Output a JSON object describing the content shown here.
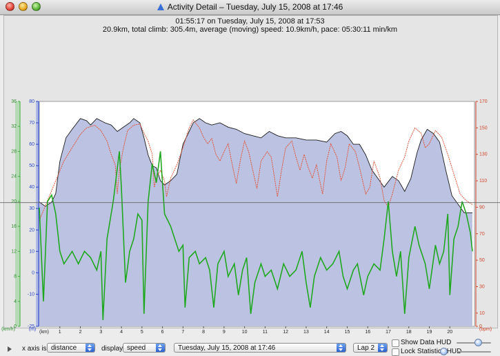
{
  "window": {
    "title": "Activity Detail – Tuesday, July 15, 2008 at 17:46"
  },
  "summary": {
    "line1": "01:55:17 on Tuesday, July 15, 2008 at 17:53",
    "line2": "20.9km, total climb: 305.4m, average (moving) speed: 10.9km/h, pace: 05:30:11 min/km"
  },
  "chart_data": {
    "type": "line",
    "x_unit": "(km)",
    "x_ticks": [
      "1",
      "2",
      "3",
      "4",
      "5",
      "6",
      "7",
      "8",
      "9",
      "10",
      "11",
      "12",
      "13",
      "14",
      "15",
      "16",
      "17",
      "18",
      "19",
      "20"
    ],
    "xlim": [
      0,
      21.2
    ],
    "axes": {
      "speed": {
        "unit": "(km/h)",
        "ticks": [
          "0",
          "4",
          "8",
          "12",
          "16",
          "20",
          "24",
          "28",
          "32",
          "36"
        ],
        "ylim": [
          0,
          36
        ],
        "color": "#3cad3c"
      },
      "altitude": {
        "unit": "(m)",
        "ticks": [
          "-25",
          "-10",
          "0",
          "10",
          "20",
          "30",
          "40",
          "50",
          "60",
          "70",
          "80"
        ],
        "ylim": [
          -25,
          80
        ],
        "color": "#2a44c8"
      },
      "heartrate": {
        "unit": "(bpm)",
        "ticks": [
          "0",
          "10",
          "30",
          "50",
          "70",
          "90",
          "110",
          "130",
          "150",
          "170"
        ],
        "ylim": [
          0,
          170
        ],
        "color": "#d0452a"
      }
    },
    "series": [
      {
        "name": "altitude",
        "axis": "altitude",
        "style": "filled",
        "points": [
          [
            0,
            33
          ],
          [
            0.3,
            31
          ],
          [
            0.6,
            33
          ],
          [
            0.8,
            37
          ],
          [
            1,
            52
          ],
          [
            1.3,
            63
          ],
          [
            1.6,
            67
          ],
          [
            2,
            72
          ],
          [
            2.3,
            71
          ],
          [
            2.5,
            69
          ],
          [
            2.8,
            72
          ],
          [
            3.2,
            70
          ],
          [
            3.5,
            69
          ],
          [
            3.8,
            66
          ],
          [
            4.1,
            68
          ],
          [
            4.4,
            70
          ],
          [
            4.6,
            72
          ],
          [
            4.9,
            70
          ],
          [
            5.1,
            63
          ],
          [
            5.3,
            55
          ],
          [
            5.5,
            50
          ],
          [
            5.7,
            49
          ],
          [
            5.9,
            43
          ],
          [
            6.1,
            41
          ],
          [
            6.4,
            43
          ],
          [
            6.7,
            46
          ],
          [
            7,
            60
          ],
          [
            7.3,
            66
          ],
          [
            7.5,
            70
          ],
          [
            7.8,
            72
          ],
          [
            8.1,
            70
          ],
          [
            8.4,
            69
          ],
          [
            8.8,
            70
          ],
          [
            9.2,
            68
          ],
          [
            9.6,
            67
          ],
          [
            10,
            65
          ],
          [
            10.4,
            64
          ],
          [
            10.8,
            63
          ],
          [
            11.2,
            66
          ],
          [
            11.6,
            64
          ],
          [
            12,
            63
          ],
          [
            12.5,
            63
          ],
          [
            13,
            62
          ],
          [
            13.5,
            62
          ],
          [
            14,
            61
          ],
          [
            14.4,
            65
          ],
          [
            14.7,
            66
          ],
          [
            15,
            64
          ],
          [
            15.3,
            60
          ],
          [
            15.6,
            60
          ],
          [
            15.9,
            55
          ],
          [
            16.2,
            48
          ],
          [
            16.5,
            44
          ],
          [
            16.8,
            40
          ],
          [
            17.2,
            45
          ],
          [
            17.5,
            43
          ],
          [
            17.8,
            38
          ],
          [
            18.1,
            44
          ],
          [
            18.4,
            56
          ],
          [
            18.6,
            62
          ],
          [
            18.9,
            67
          ],
          [
            19.2,
            65
          ],
          [
            19.5,
            61
          ],
          [
            19.8,
            48
          ],
          [
            20.1,
            36
          ],
          [
            20.4,
            32
          ],
          [
            20.7,
            28
          ],
          [
            21.1,
            28
          ]
        ]
      },
      {
        "name": "heart-rate",
        "axis": "heartrate",
        "points": [
          [
            0,
            80
          ],
          [
            0.4,
            95
          ],
          [
            0.8,
            110
          ],
          [
            1.2,
            125
          ],
          [
            1.6,
            135
          ],
          [
            2,
            145
          ],
          [
            2.3,
            150
          ],
          [
            2.7,
            152
          ],
          [
            3,
            148
          ],
          [
            3.3,
            140
          ],
          [
            3.5,
            130
          ],
          [
            3.7,
            122
          ],
          [
            3.8,
            100
          ],
          [
            3.9,
            118
          ],
          [
            4.1,
            135
          ],
          [
            4.3,
            148
          ],
          [
            4.6,
            152
          ],
          [
            4.9,
            153
          ],
          [
            5.1,
            146
          ],
          [
            5.3,
            140
          ],
          [
            5.5,
            130
          ],
          [
            5.6,
            105
          ],
          [
            5.7,
            112
          ],
          [
            5.9,
            118
          ],
          [
            6.1,
            110
          ],
          [
            6.2,
            98
          ],
          [
            6.4,
            112
          ],
          [
            6.7,
            122
          ],
          [
            7,
            135
          ],
          [
            7.3,
            150
          ],
          [
            7.5,
            156
          ],
          [
            7.8,
            150
          ],
          [
            8,
            143
          ],
          [
            8.2,
            138
          ],
          [
            8.4,
            142
          ],
          [
            8.6,
            130
          ],
          [
            8.8,
            125
          ],
          [
            9,
            132
          ],
          [
            9.2,
            138
          ],
          [
            9.4,
            122
          ],
          [
            9.6,
            108
          ],
          [
            9.8,
            126
          ],
          [
            10,
            140
          ],
          [
            10.2,
            132
          ],
          [
            10.4,
            118
          ],
          [
            10.6,
            104
          ],
          [
            10.8,
            125
          ],
          [
            11.1,
            132
          ],
          [
            11.3,
            128
          ],
          [
            11.6,
            98
          ],
          [
            11.8,
            118
          ],
          [
            12,
            135
          ],
          [
            12.3,
            140
          ],
          [
            12.5,
            128
          ],
          [
            12.7,
            118
          ],
          [
            12.9,
            130
          ],
          [
            13.1,
            120
          ],
          [
            13.3,
            112
          ],
          [
            13.5,
            122
          ],
          [
            13.8,
            100
          ],
          [
            14,
            125
          ],
          [
            14.2,
            138
          ],
          [
            14.5,
            128
          ],
          [
            14.7,
            110
          ],
          [
            14.9,
            120
          ],
          [
            15.1,
            138
          ],
          [
            15.4,
            132
          ],
          [
            15.6,
            120
          ],
          [
            15.9,
            100
          ],
          [
            16.1,
            105
          ],
          [
            16.3,
            125
          ],
          [
            16.6,
            112
          ],
          [
            16.8,
            95
          ],
          [
            17,
            90
          ],
          [
            17.2,
            100
          ],
          [
            17.5,
            118
          ],
          [
            17.8,
            128
          ],
          [
            18,
            140
          ],
          [
            18.3,
            150
          ],
          [
            18.6,
            146
          ],
          [
            18.8,
            135
          ],
          [
            19,
            138
          ],
          [
            19.3,
            148
          ],
          [
            19.6,
            143
          ],
          [
            19.9,
            130
          ],
          [
            20.2,
            115
          ],
          [
            20.5,
            100
          ],
          [
            20.8,
            95
          ],
          [
            21.1,
            92
          ]
        ]
      },
      {
        "name": "speed",
        "axis": "speed",
        "points": [
          [
            0,
            19
          ],
          [
            0.2,
            4
          ],
          [
            0.4,
            20
          ],
          [
            0.6,
            21
          ],
          [
            0.8,
            18
          ],
          [
            1,
            12
          ],
          [
            1.2,
            10
          ],
          [
            1.4,
            11
          ],
          [
            1.6,
            12
          ],
          [
            1.9,
            10
          ],
          [
            2.2,
            12
          ],
          [
            2.5,
            11
          ],
          [
            2.8,
            9
          ],
          [
            3,
            12
          ],
          [
            3.1,
            1
          ],
          [
            3.3,
            14
          ],
          [
            3.6,
            20
          ],
          [
            3.9,
            28
          ],
          [
            4,
            22
          ],
          [
            4.2,
            7
          ],
          [
            4.4,
            12
          ],
          [
            4.6,
            14
          ],
          [
            4.8,
            18
          ],
          [
            5,
            17
          ],
          [
            5.1,
            2
          ],
          [
            5.3,
            20
          ],
          [
            5.5,
            26
          ],
          [
            5.7,
            23
          ],
          [
            5.9,
            28
          ],
          [
            6.1,
            18
          ],
          [
            6.4,
            16
          ],
          [
            6.6,
            14
          ],
          [
            6.8,
            12
          ],
          [
            7,
            13
          ],
          [
            7.1,
            3
          ],
          [
            7.3,
            11
          ],
          [
            7.6,
            12
          ],
          [
            7.8,
            10
          ],
          [
            8.1,
            11
          ],
          [
            8.3,
            9
          ],
          [
            8.5,
            3
          ],
          [
            8.7,
            10
          ],
          [
            9,
            12
          ],
          [
            9.2,
            8
          ],
          [
            9.5,
            10
          ],
          [
            9.7,
            5
          ],
          [
            9.9,
            9
          ],
          [
            10.1,
            11
          ],
          [
            10.3,
            2
          ],
          [
            10.5,
            7
          ],
          [
            10.8,
            10
          ],
          [
            11,
            8
          ],
          [
            11.3,
            9
          ],
          [
            11.6,
            6
          ],
          [
            11.9,
            10
          ],
          [
            12.2,
            8
          ],
          [
            12.5,
            9
          ],
          [
            12.8,
            12
          ],
          [
            13,
            7
          ],
          [
            13.2,
            3
          ],
          [
            13.4,
            8
          ],
          [
            13.7,
            11
          ],
          [
            14,
            9
          ],
          [
            14.3,
            10
          ],
          [
            14.6,
            12
          ],
          [
            14.8,
            8
          ],
          [
            15,
            6
          ],
          [
            15.3,
            9
          ],
          [
            15.5,
            10
          ],
          [
            15.8,
            5
          ],
          [
            16,
            8
          ],
          [
            16.3,
            10
          ],
          [
            16.6,
            9
          ],
          [
            16.8,
            14
          ],
          [
            17,
            20
          ],
          [
            17.2,
            12
          ],
          [
            17.4,
            8
          ],
          [
            17.6,
            12
          ],
          [
            17.8,
            2
          ],
          [
            18,
            11
          ],
          [
            18.3,
            16
          ],
          [
            18.5,
            13
          ],
          [
            18.8,
            10
          ],
          [
            19,
            6
          ],
          [
            19.3,
            13
          ],
          [
            19.5,
            10
          ],
          [
            19.7,
            12
          ],
          [
            19.9,
            18
          ],
          [
            20,
            5
          ],
          [
            20.2,
            14
          ],
          [
            20.4,
            16
          ],
          [
            20.6,
            20
          ],
          [
            20.8,
            18
          ],
          [
            21,
            15
          ],
          [
            21.1,
            12
          ]
        ]
      }
    ],
    "reference_line": {
      "axis": "speed",
      "value": 19.8
    }
  },
  "controls": {
    "xaxis_label": "x axis is:",
    "xaxis_value": "distance",
    "display_label": "display:",
    "display_value": "speed",
    "activity_value": "Tuesday, July 15, 2008 at 17:46",
    "lap_value": "Lap 2",
    "show_data_hud": "Show Data HUD",
    "lock_stats_hud": "Lock Statistics HUD",
    "show_data_hud_checked": false,
    "lock_stats_hud_checked": false
  }
}
